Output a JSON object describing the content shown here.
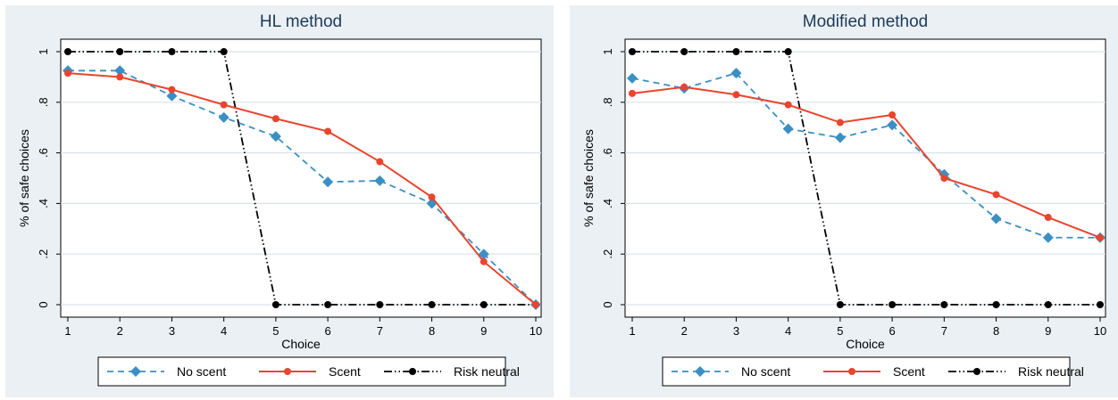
{
  "chart_data": [
    {
      "type": "line",
      "title": "HL method",
      "xlabel": "Choice",
      "ylabel": "% of safe choices",
      "x": [
        1,
        2,
        3,
        4,
        5,
        6,
        7,
        8,
        9,
        10
      ],
      "xticks": [
        "1",
        "2",
        "3",
        "4",
        "5",
        "6",
        "7",
        "8",
        "9",
        "10"
      ],
      "yticks": [
        "0",
        ".2",
        ".4",
        ".6",
        ".8",
        "1"
      ],
      "ylim": [
        0,
        1
      ],
      "xlim": [
        1,
        10
      ],
      "grid": "horizontal",
      "legend": "bottom",
      "series": [
        {
          "name": "No scent",
          "color": "#3a8fc4",
          "style": "dashed",
          "marker": "diamond",
          "values": [
            0.925,
            0.925,
            0.825,
            0.74,
            0.665,
            0.485,
            0.49,
            0.4,
            0.2,
            0.0
          ]
        },
        {
          "name": "Scent",
          "color": "#e8452e",
          "style": "solid",
          "marker": "circle",
          "values": [
            0.915,
            0.9,
            0.85,
            0.79,
            0.735,
            0.685,
            0.565,
            0.425,
            0.17,
            0.0
          ]
        },
        {
          "name": "Risk neutral",
          "color": "#000000",
          "style": "dashdot",
          "marker": "circle",
          "values": [
            1,
            1,
            1,
            1,
            0,
            0,
            0,
            0,
            0,
            0
          ]
        }
      ]
    },
    {
      "type": "line",
      "title": "Modified method",
      "xlabel": "Choice",
      "ylabel": "% of safe choices",
      "x": [
        1,
        2,
        3,
        4,
        5,
        6,
        7,
        8,
        9,
        10
      ],
      "xticks": [
        "1",
        "2",
        "3",
        "4",
        "5",
        "6",
        "7",
        "8",
        "9",
        "10"
      ],
      "yticks": [
        "0",
        ".2",
        ".4",
        ".6",
        ".8",
        "1"
      ],
      "ylim": [
        0,
        1
      ],
      "xlim": [
        1,
        10
      ],
      "grid": "horizontal",
      "legend": "bottom",
      "series": [
        {
          "name": "No scent",
          "color": "#3a8fc4",
          "style": "dashed",
          "marker": "diamond",
          "values": [
            0.895,
            0.855,
            0.915,
            0.695,
            0.66,
            0.71,
            0.515,
            0.34,
            0.265,
            0.265
          ]
        },
        {
          "name": "Scent",
          "color": "#e8452e",
          "style": "solid",
          "marker": "circle",
          "values": [
            0.835,
            0.86,
            0.83,
            0.79,
            0.72,
            0.75,
            0.5,
            0.435,
            0.345,
            0.265
          ]
        },
        {
          "name": "Risk neutral",
          "color": "#000000",
          "style": "dashdot",
          "marker": "circle",
          "values": [
            1,
            1,
            1,
            1,
            0,
            0,
            0,
            0,
            0,
            0
          ]
        }
      ]
    }
  ]
}
